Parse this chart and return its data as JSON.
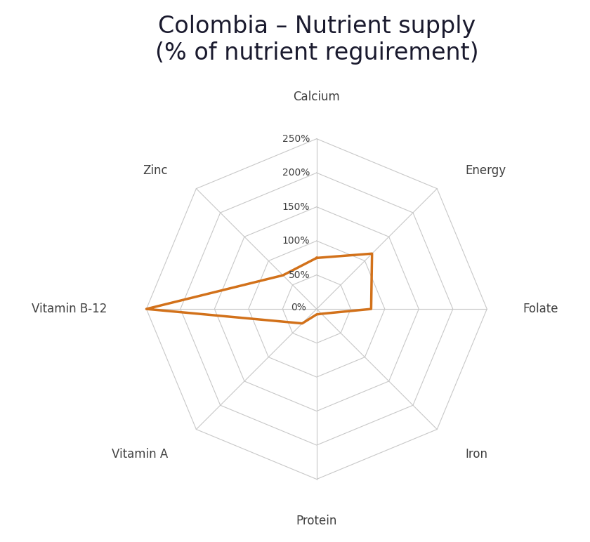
{
  "title": "Colombia – Nutrient supply\n(% of nutrient reguirement)",
  "categories": [
    "Calcium",
    "Energy",
    "Folate",
    "Iron",
    "Protein",
    "Vitamin A",
    "Vitamin B-12",
    "Zinc"
  ],
  "values": [
    75,
    115,
    80,
    10,
    8,
    30,
    250,
    70
  ],
  "max_value": 250,
  "grid_levels": [
    0,
    50,
    100,
    150,
    200,
    250
  ],
  "line_color": "#D2711A",
  "grid_color": "#C8C8C8",
  "background_color": "#FFFFFF",
  "label_color": "#404040",
  "title_color": "#1a1a2e",
  "line_width": 2.5,
  "title_fontsize": 24,
  "label_fontsize": 12,
  "grid_label_fontsize": 10
}
